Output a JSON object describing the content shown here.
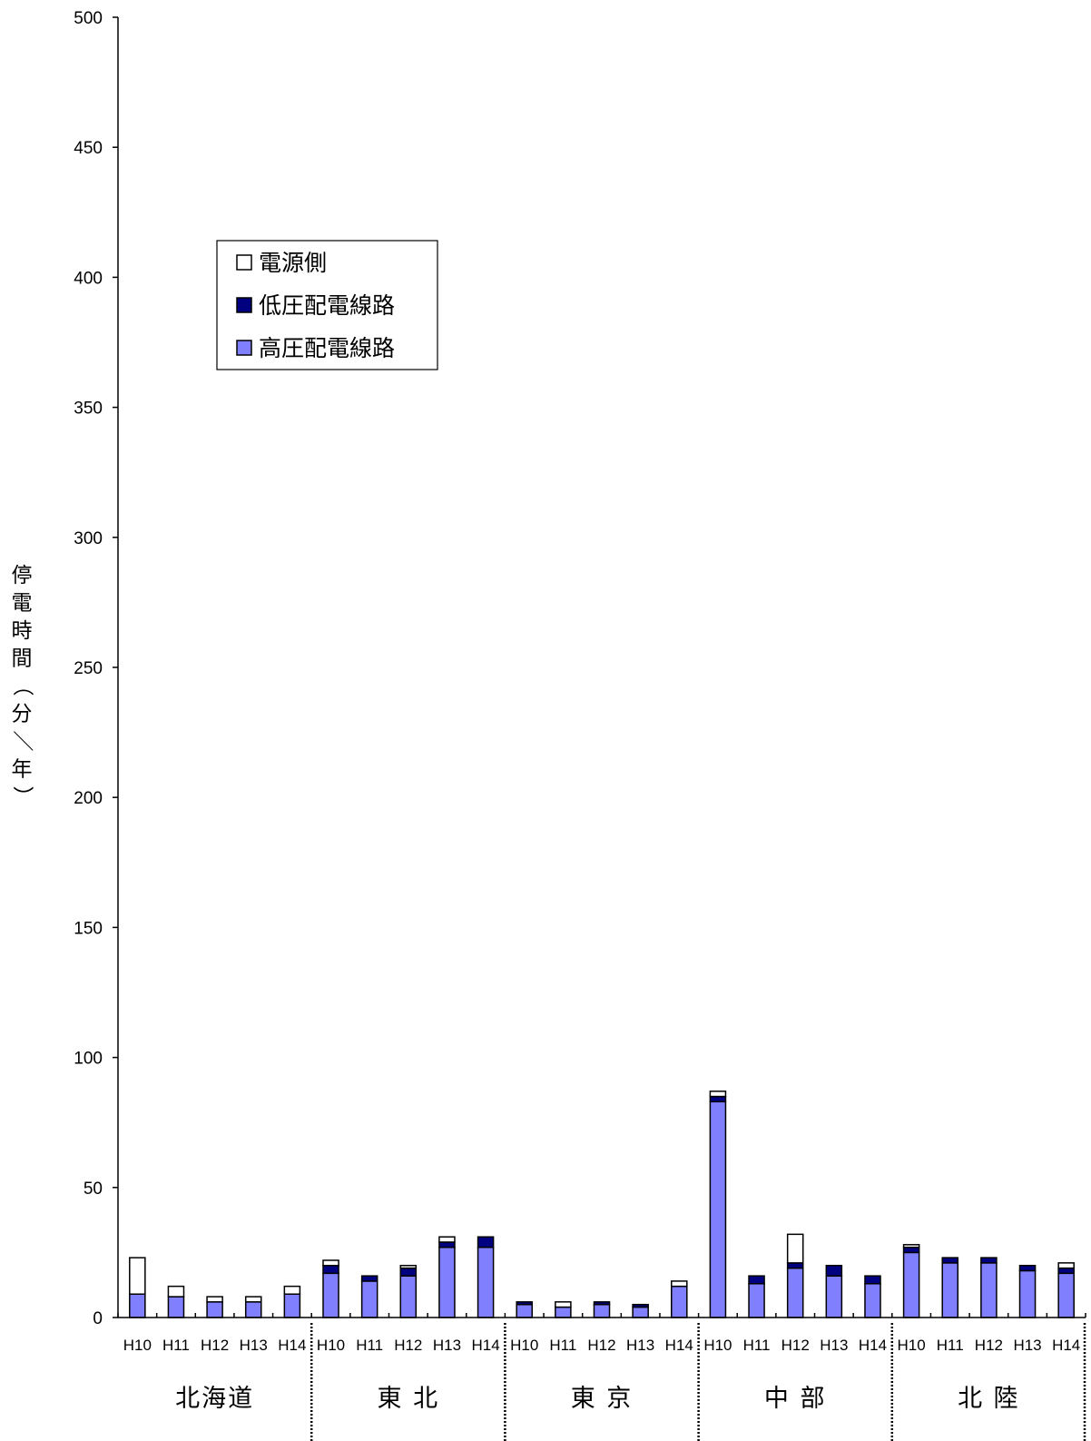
{
  "chart_data": {
    "type": "bar",
    "stacked": true,
    "ylabel": "停電時間（分／年）",
    "ylim": [
      0,
      500
    ],
    "yticks": [
      0,
      50,
      100,
      150,
      200,
      250,
      300,
      350,
      400,
      450,
      500
    ],
    "groups": [
      {
        "name": "北海道",
        "categories": [
          "H10",
          "H11",
          "H12",
          "H13",
          "H14"
        ]
      },
      {
        "name": "東 北",
        "categories": [
          "H10",
          "H11",
          "H12",
          "H13",
          "H14"
        ]
      },
      {
        "name": "東 京",
        "categories": [
          "H10",
          "H11",
          "H12",
          "H13",
          "H14"
        ]
      },
      {
        "name": "中 部",
        "categories": [
          "H10",
          "H11",
          "H12",
          "H13",
          "H14"
        ]
      },
      {
        "name": "北 陸",
        "categories": [
          "H10",
          "H11",
          "H12",
          "H13",
          "H14"
        ]
      }
    ],
    "series": [
      {
        "name": "高圧配電線路",
        "color": "#8080ff",
        "values": [
          9,
          8,
          6,
          6,
          9,
          17,
          14,
          16,
          27,
          27,
          5,
          4,
          5,
          4,
          12,
          83,
          13,
          19,
          16,
          13,
          25,
          21,
          21,
          18,
          17
        ]
      },
      {
        "name": "低圧配電線路",
        "color": "#000080",
        "values": [
          0,
          0,
          0,
          0,
          0,
          3,
          2,
          3,
          2,
          4,
          1,
          0,
          1,
          1,
          0,
          2,
          3,
          2,
          4,
          3,
          2,
          2,
          2,
          2,
          2
        ]
      },
      {
        "name": "電源側",
        "color": "#ffffff",
        "values": [
          14,
          4,
          2,
          2,
          3,
          2,
          0,
          1,
          2,
          0,
          0,
          2,
          0,
          0,
          2,
          2,
          0,
          11,
          0,
          0,
          1,
          0,
          0,
          0,
          2
        ]
      }
    ],
    "legend_position": "top-left",
    "grid": false
  },
  "legend": {
    "items": [
      {
        "label": "電源側",
        "color": "#ffffff"
      },
      {
        "label": "低圧配電線路",
        "color": "#000080"
      },
      {
        "label": "高圧配電線路",
        "color": "#8080ff"
      }
    ]
  }
}
